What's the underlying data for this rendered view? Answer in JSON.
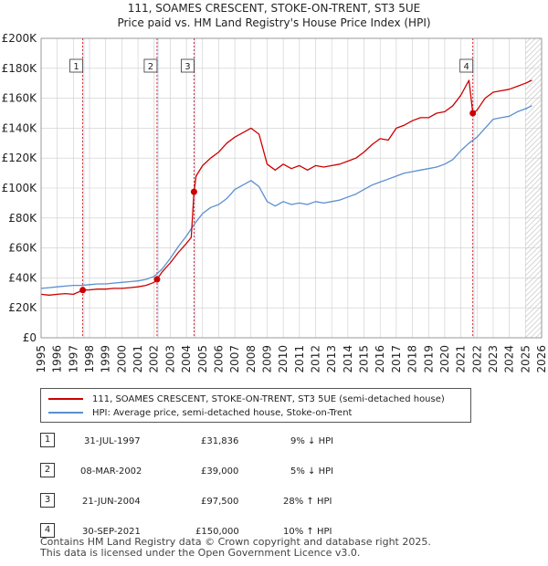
{
  "header": {
    "title": "111, SOAMES CRESCENT, STOKE-ON-TRENT, ST3 5UE",
    "subtitle": "Price paid vs. HM Land Registry's House Price Index (HPI)"
  },
  "legend": {
    "property": "111, SOAMES CRESCENT, STOKE-ON-TRENT, ST3 5UE (semi-detached house)",
    "hpi": "HPI: Average price, semi-detached house, Stoke-on-Trent"
  },
  "sales": [
    {
      "num": "1",
      "date": "31-JUL-1997",
      "price": "£31,836",
      "hpi": "9% ↓ HPI"
    },
    {
      "num": "2",
      "date": "08-MAR-2002",
      "price": "£39,000",
      "hpi": "5% ↓ HPI"
    },
    {
      "num": "3",
      "date": "21-JUN-2004",
      "price": "£97,500",
      "hpi": "28% ↑ HPI"
    },
    {
      "num": "4",
      "date": "30-SEP-2021",
      "price": "£150,000",
      "hpi": "10% ↑ HPI"
    }
  ],
  "footer": {
    "line1": "Contains HM Land Registry data © Crown copyright and database right 2025.",
    "line2": "This data is licensed under the Open Government Licence v3.0."
  },
  "colors": {
    "property": "#cc0000",
    "hpi": "#5b8fd0",
    "band": "#dde7f5",
    "grid": "#cccccc",
    "hatch": "#bbbbbb"
  },
  "chart_data": {
    "type": "line",
    "xlim": [
      1995,
      2026
    ],
    "ylim": [
      0,
      200000
    ],
    "x_ticks": [
      1995,
      1996,
      1997,
      1998,
      1999,
      2000,
      2001,
      2002,
      2003,
      2004,
      2005,
      2006,
      2007,
      2008,
      2009,
      2010,
      2011,
      2012,
      2013,
      2014,
      2015,
      2016,
      2017,
      2018,
      2019,
      2020,
      2021,
      2022,
      2023,
      2024,
      2025,
      2026
    ],
    "y_ticks": [
      0,
      20000,
      40000,
      60000,
      80000,
      100000,
      120000,
      140000,
      160000,
      180000,
      200000
    ],
    "y_tick_labels": [
      "£0",
      "£20K",
      "£40K",
      "£60K",
      "£80K",
      "£100K",
      "£120K",
      "£140K",
      "£160K",
      "£180K",
      "£200K"
    ],
    "grid": true,
    "forecast_hatch_from": 2025.0,
    "series": [
      {
        "name": "111, SOAMES CRESCENT, STOKE-ON-TRENT, ST3 5UE (semi-detached house)",
        "color": "#cc0000",
        "x": [
          1995.0,
          1995.5,
          1996.0,
          1996.5,
          1997.0,
          1997.58,
          1998.0,
          1998.5,
          1999.0,
          1999.5,
          2000.0,
          2000.5,
          2001.0,
          2001.5,
          2002.0,
          2002.18,
          2002.5,
          2003.0,
          2003.5,
          2004.0,
          2004.3,
          2004.47,
          2004.6,
          2005.0,
          2005.5,
          2006.0,
          2006.5,
          2007.0,
          2007.5,
          2008.0,
          2008.5,
          2009.0,
          2009.5,
          2010.0,
          2010.5,
          2011.0,
          2011.5,
          2012.0,
          2012.5,
          2013.0,
          2013.5,
          2014.0,
          2014.5,
          2015.0,
          2015.5,
          2016.0,
          2016.5,
          2017.0,
          2017.5,
          2018.0,
          2018.5,
          2019.0,
          2019.5,
          2020.0,
          2020.5,
          2021.0,
          2021.5,
          2021.74,
          2022.0,
          2022.5,
          2023.0,
          2023.5,
          2024.0,
          2024.5,
          2025.0,
          2025.4
        ],
        "y": [
          29000,
          28500,
          29000,
          29500,
          29000,
          31836,
          32000,
          32500,
          32500,
          33000,
          33000,
          33500,
          34000,
          35000,
          37000,
          39000,
          44000,
          50000,
          57000,
          63000,
          67000,
          97500,
          108000,
          115000,
          120000,
          124000,
          130000,
          134000,
          137000,
          140000,
          136000,
          116000,
          112000,
          116000,
          113000,
          115000,
          112000,
          115000,
          114000,
          115000,
          116000,
          118000,
          120000,
          124000,
          129000,
          133000,
          132000,
          140000,
          142000,
          145000,
          147000,
          147000,
          150000,
          151000,
          155000,
          162000,
          172000,
          150000,
          152000,
          160000,
          164000,
          165000,
          166000,
          168000,
          170000,
          172000
        ]
      },
      {
        "name": "HPI: Average price, semi-detached house, Stoke-on-Trent",
        "color": "#5b8fd0",
        "x": [
          1995.0,
          1995.5,
          1996.0,
          1996.5,
          1997.0,
          1997.5,
          1998.0,
          1998.5,
          1999.0,
          1999.5,
          2000.0,
          2000.5,
          2001.0,
          2001.5,
          2002.0,
          2002.5,
          2003.0,
          2003.5,
          2004.0,
          2004.5,
          2005.0,
          2005.5,
          2006.0,
          2006.5,
          2007.0,
          2007.5,
          2008.0,
          2008.5,
          2009.0,
          2009.5,
          2010.0,
          2010.5,
          2011.0,
          2011.5,
          2012.0,
          2012.5,
          2013.0,
          2013.5,
          2014.0,
          2014.5,
          2015.0,
          2015.5,
          2016.0,
          2016.5,
          2017.0,
          2017.5,
          2018.0,
          2018.5,
          2019.0,
          2019.5,
          2020.0,
          2020.5,
          2021.0,
          2021.5,
          2022.0,
          2022.5,
          2023.0,
          2023.5,
          2024.0,
          2024.5,
          2025.0,
          2025.4
        ],
        "y": [
          33000,
          33500,
          34000,
          34500,
          35000,
          35000,
          35500,
          36000,
          36000,
          36500,
          37000,
          37500,
          38000,
          39000,
          41000,
          46000,
          53000,
          61000,
          68000,
          76000,
          83000,
          87000,
          89000,
          93000,
          99000,
          102000,
          105000,
          101000,
          91000,
          88000,
          91000,
          89000,
          90000,
          89000,
          91000,
          90000,
          91000,
          92000,
          94000,
          96000,
          99000,
          102000,
          104000,
          106000,
          108000,
          110000,
          111000,
          112000,
          113000,
          114000,
          116000,
          119000,
          125000,
          130000,
          134000,
          140000,
          146000,
          147000,
          148000,
          151000,
          153000,
          155000
        ]
      }
    ],
    "sales": [
      {
        "label": "1",
        "x": 1997.58,
        "y": 31836
      },
      {
        "label": "2",
        "x": 2002.18,
        "y": 39000
      },
      {
        "label": "3",
        "x": 2004.47,
        "y": 97500
      },
      {
        "label": "4",
        "x": 2021.74,
        "y": 150000
      }
    ],
    "sale_bands": [
      [
        1997.58,
        1997.62
      ],
      [
        2002.18,
        2002.22
      ],
      [
        2004.47,
        2004.53
      ],
      [
        2021.74,
        2021.78
      ]
    ]
  }
}
